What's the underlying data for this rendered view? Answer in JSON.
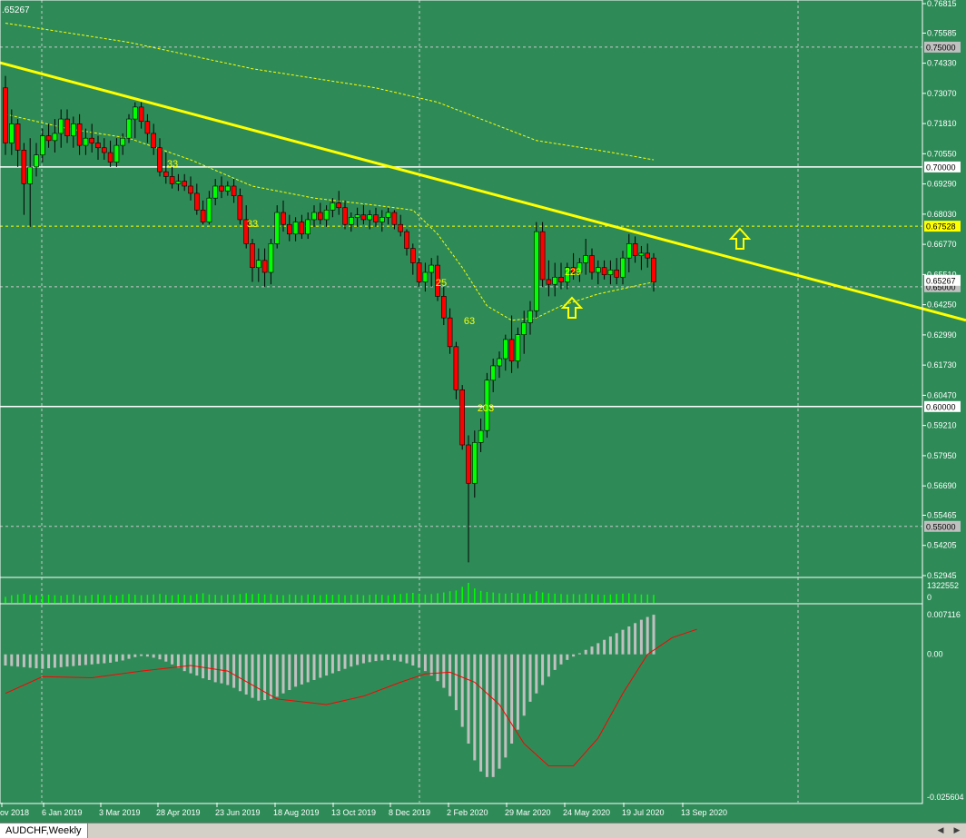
{
  "window": {
    "tab_label": "AUDCHF,Weekly",
    "scroll_left_glyph": "◀",
    "scroll_right_glyph": "▶"
  },
  "colors": {
    "background": "#2e8b57",
    "grid": "#c8c8c8",
    "axis_text": "#ffffff",
    "bull_candle": "#00ff00",
    "bear_candle": "#ff0000",
    "wick": "#000000",
    "trendline": "#ffff00",
    "ma": "#ffff00",
    "volume": "#00ff00",
    "macd_hist": "#c0c0c0",
    "macd_signal": "#ff0000",
    "arrow": "#ffff00",
    "label_box": "#c0c0c0",
    "highlight_box": "#ffff00"
  },
  "price_axis": {
    "ticks": [
      "0.76815",
      "0.75585",
      "0.74330",
      "0.73070",
      "0.71810",
      "0.70550",
      "0.69290",
      "0.68030",
      "0.66770",
      "0.65510",
      "0.64250",
      "0.62990",
      "0.61730",
      "0.60470",
      "0.59210",
      "0.57950",
      "0.56690",
      "0.55465",
      "0.54205",
      "0.52945"
    ],
    "level_labels": [
      {
        "value": "0.75000",
        "style": "gray"
      },
      {
        "value": "0.70000",
        "style": "white"
      },
      {
        "value": "0.67528",
        "style": "yellow"
      },
      {
        "value": "0.65000",
        "style": "gray"
      },
      {
        "value": "0.60000",
        "style": "white"
      },
      {
        "value": "0.55000",
        "style": "gray"
      }
    ],
    "current_price": "0.65267"
  },
  "volume_axis": {
    "top_label": "1322552",
    "bottom_label": "0"
  },
  "macd_axis": {
    "top_label": "0.007116",
    "zero_label": "0.00",
    "bottom_label": "-0.025604"
  },
  "time_axis": {
    "labels": [
      "ov 2018",
      "6 Jan 2019",
      "3 Mar 2019",
      "28 Apr 2019",
      "23 Jun 2019",
      "18 Aug 2019",
      "13 Oct 2019",
      "8 Dec 2019",
      "2 Feb 2020",
      "29 Mar 2020",
      "24 May 2020",
      "19 Jul 2020",
      "13 Sep 2020"
    ]
  },
  "top_left_price": ".65267",
  "chart_annotations": [
    "33",
    "33",
    "25",
    "63",
    "203",
    "229"
  ],
  "chart_data": {
    "type": "candlestick",
    "symbol": "AUDCHF",
    "timeframe": "Weekly",
    "ylim": [
      0.52945,
      0.76815
    ],
    "horizontal_levels": [
      0.75,
      0.7,
      0.67528,
      0.65,
      0.6,
      0.55
    ],
    "candles": [
      [
        0.733,
        0.738,
        0.705,
        0.71
      ],
      [
        0.71,
        0.724,
        0.705,
        0.718
      ],
      [
        0.718,
        0.72,
        0.7,
        0.707
      ],
      [
        0.707,
        0.71,
        0.68,
        0.693
      ],
      [
        0.693,
        0.712,
        0.675,
        0.7
      ],
      [
        0.7,
        0.71,
        0.696,
        0.705
      ],
      [
        0.705,
        0.716,
        0.702,
        0.713
      ],
      [
        0.713,
        0.718,
        0.708,
        0.711
      ],
      [
        0.711,
        0.72,
        0.706,
        0.714
      ],
      [
        0.714,
        0.724,
        0.708,
        0.72
      ],
      [
        0.72,
        0.724,
        0.71,
        0.713
      ],
      [
        0.713,
        0.721,
        0.708,
        0.718
      ],
      [
        0.718,
        0.722,
        0.705,
        0.709
      ],
      [
        0.709,
        0.716,
        0.705,
        0.712
      ],
      [
        0.712,
        0.718,
        0.706,
        0.71
      ],
      [
        0.71,
        0.713,
        0.703,
        0.708
      ],
      [
        0.708,
        0.712,
        0.703,
        0.706
      ],
      [
        0.706,
        0.711,
        0.7,
        0.702
      ],
      [
        0.702,
        0.712,
        0.7,
        0.709
      ],
      [
        0.709,
        0.714,
        0.705,
        0.712
      ],
      [
        0.712,
        0.722,
        0.71,
        0.72
      ],
      [
        0.72,
        0.727,
        0.712,
        0.725
      ],
      [
        0.725,
        0.727,
        0.716,
        0.719
      ],
      [
        0.719,
        0.722,
        0.71,
        0.714
      ],
      [
        0.714,
        0.718,
        0.705,
        0.708
      ],
      [
        0.708,
        0.712,
        0.696,
        0.698
      ],
      [
        0.698,
        0.706,
        0.693,
        0.696
      ],
      [
        0.696,
        0.7,
        0.691,
        0.693
      ],
      [
        0.693,
        0.697,
        0.69,
        0.694
      ],
      [
        0.694,
        0.697,
        0.69,
        0.692
      ],
      [
        0.692,
        0.696,
        0.686,
        0.689
      ],
      [
        0.689,
        0.693,
        0.68,
        0.682
      ],
      [
        0.682,
        0.686,
        0.676,
        0.677
      ],
      [
        0.677,
        0.69,
        0.676,
        0.687
      ],
      [
        0.687,
        0.695,
        0.684,
        0.692
      ],
      [
        0.692,
        0.696,
        0.687,
        0.69
      ],
      [
        0.69,
        0.694,
        0.688,
        0.692
      ],
      [
        0.692,
        0.695,
        0.685,
        0.688
      ],
      [
        0.688,
        0.691,
        0.676,
        0.678
      ],
      [
        0.678,
        0.684,
        0.666,
        0.668
      ],
      [
        0.668,
        0.67,
        0.652,
        0.658
      ],
      [
        0.658,
        0.666,
        0.652,
        0.661
      ],
      [
        0.661,
        0.666,
        0.65,
        0.656
      ],
      [
        0.656,
        0.67,
        0.651,
        0.668
      ],
      [
        0.668,
        0.684,
        0.666,
        0.681
      ],
      [
        0.681,
        0.686,
        0.673,
        0.676
      ],
      [
        0.676,
        0.68,
        0.669,
        0.672
      ],
      [
        0.672,
        0.679,
        0.669,
        0.677
      ],
      [
        0.677,
        0.68,
        0.67,
        0.672
      ],
      [
        0.672,
        0.681,
        0.67,
        0.678
      ],
      [
        0.678,
        0.684,
        0.675,
        0.681
      ],
      [
        0.681,
        0.685,
        0.676,
        0.678
      ],
      [
        0.678,
        0.684,
        0.675,
        0.682
      ],
      [
        0.682,
        0.687,
        0.679,
        0.685
      ],
      [
        0.685,
        0.69,
        0.68,
        0.683
      ],
      [
        0.683,
        0.686,
        0.674,
        0.676
      ],
      [
        0.676,
        0.681,
        0.673,
        0.679
      ],
      [
        0.679,
        0.683,
        0.675,
        0.68
      ],
      [
        0.68,
        0.684,
        0.676,
        0.678
      ],
      [
        0.678,
        0.682,
        0.674,
        0.68
      ],
      [
        0.68,
        0.683,
        0.675,
        0.677
      ],
      [
        0.677,
        0.682,
        0.673,
        0.679
      ],
      [
        0.679,
        0.683,
        0.676,
        0.681
      ],
      [
        0.681,
        0.682,
        0.674,
        0.676
      ],
      [
        0.676,
        0.68,
        0.671,
        0.673
      ],
      [
        0.673,
        0.674,
        0.663,
        0.666
      ],
      [
        0.666,
        0.668,
        0.655,
        0.66
      ],
      [
        0.66,
        0.662,
        0.65,
        0.652
      ],
      [
        0.652,
        0.66,
        0.648,
        0.656
      ],
      [
        0.656,
        0.662,
        0.65,
        0.659
      ],
      [
        0.659,
        0.663,
        0.644,
        0.646
      ],
      [
        0.646,
        0.65,
        0.634,
        0.637
      ],
      [
        0.637,
        0.641,
        0.622,
        0.625
      ],
      [
        0.625,
        0.627,
        0.603,
        0.607
      ],
      [
        0.607,
        0.609,
        0.582,
        0.584
      ],
      [
        0.584,
        0.588,
        0.535,
        0.568
      ],
      [
        0.568,
        0.59,
        0.562,
        0.585
      ],
      [
        0.585,
        0.595,
        0.581,
        0.59
      ],
      [
        0.59,
        0.614,
        0.587,
        0.611
      ],
      [
        0.611,
        0.62,
        0.606,
        0.617
      ],
      [
        0.617,
        0.623,
        0.612,
        0.62
      ],
      [
        0.62,
        0.63,
        0.615,
        0.628
      ],
      [
        0.628,
        0.638,
        0.614,
        0.619
      ],
      [
        0.619,
        0.633,
        0.616,
        0.63
      ],
      [
        0.63,
        0.64,
        0.622,
        0.635
      ],
      [
        0.635,
        0.644,
        0.63,
        0.64
      ],
      [
        0.64,
        0.677,
        0.637,
        0.673
      ],
      [
        0.673,
        0.677,
        0.65,
        0.653
      ],
      [
        0.653,
        0.661,
        0.646,
        0.651
      ],
      [
        0.651,
        0.66,
        0.646,
        0.654
      ],
      [
        0.654,
        0.66,
        0.649,
        0.652
      ],
      [
        0.652,
        0.66,
        0.649,
        0.658
      ],
      [
        0.658,
        0.664,
        0.653,
        0.656
      ],
      [
        0.656,
        0.662,
        0.652,
        0.66
      ],
      [
        0.66,
        0.67,
        0.655,
        0.663
      ],
      [
        0.663,
        0.666,
        0.653,
        0.656
      ],
      [
        0.656,
        0.661,
        0.651,
        0.658
      ],
      [
        0.658,
        0.661,
        0.653,
        0.655
      ],
      [
        0.655,
        0.661,
        0.651,
        0.657
      ],
      [
        0.657,
        0.662,
        0.651,
        0.654
      ],
      [
        0.654,
        0.665,
        0.651,
        0.662
      ],
      [
        0.662,
        0.672,
        0.656,
        0.668
      ],
      [
        0.668,
        0.671,
        0.66,
        0.663
      ],
      [
        0.663,
        0.667,
        0.657,
        0.664
      ],
      [
        0.664,
        0.668,
        0.658,
        0.662
      ],
      [
        0.662,
        0.664,
        0.648,
        0.652
      ]
    ],
    "ma_fast": [
      [
        0,
        0.722
      ],
      [
        10,
        0.716
      ],
      [
        20,
        0.712
      ],
      [
        30,
        0.703
      ],
      [
        40,
        0.692
      ],
      [
        50,
        0.687
      ],
      [
        60,
        0.684
      ],
      [
        66,
        0.682
      ],
      [
        70,
        0.672
      ],
      [
        74,
        0.658
      ],
      [
        78,
        0.642
      ],
      [
        82,
        0.636
      ],
      [
        86,
        0.637
      ],
      [
        90,
        0.642
      ],
      [
        96,
        0.647
      ],
      [
        105,
        0.652
      ]
    ],
    "ma_slow": [
      [
        0,
        0.76
      ],
      [
        20,
        0.752
      ],
      [
        40,
        0.741
      ],
      [
        60,
        0.733
      ],
      [
        70,
        0.727
      ],
      [
        78,
        0.719
      ],
      [
        86,
        0.711
      ],
      [
        96,
        0.707
      ],
      [
        105,
        0.703
      ]
    ],
    "trendline": {
      "x1": 0,
      "y1": 0.7435,
      "x2": 1064,
      "y2": 0.636
    },
    "volume": [
      0.3,
      0.38,
      0.42,
      0.45,
      0.4,
      0.38,
      0.35,
      0.4,
      0.38,
      0.36,
      0.4,
      0.42,
      0.38,
      0.36,
      0.4,
      0.42,
      0.38,
      0.4,
      0.36,
      0.42,
      0.44,
      0.4,
      0.38,
      0.4,
      0.42,
      0.44,
      0.4,
      0.38,
      0.42,
      0.4,
      0.38,
      0.44,
      0.48,
      0.42,
      0.4,
      0.38,
      0.42,
      0.4,
      0.44,
      0.48,
      0.44,
      0.46,
      0.42,
      0.44,
      0.4,
      0.38,
      0.42,
      0.4,
      0.38,
      0.42,
      0.4,
      0.38,
      0.42,
      0.4,
      0.42,
      0.38,
      0.4,
      0.42,
      0.38,
      0.4,
      0.42,
      0.4,
      0.38,
      0.42,
      0.44,
      0.48,
      0.5,
      0.46,
      0.42,
      0.44,
      0.48,
      0.52,
      0.58,
      0.62,
      0.8,
      1.0,
      0.72,
      0.6,
      0.55,
      0.52,
      0.48,
      0.46,
      0.5,
      0.48,
      0.46,
      0.44,
      0.58,
      0.52,
      0.48,
      0.46,
      0.44,
      0.42,
      0.44,
      0.42,
      0.46,
      0.44,
      0.42,
      0.4,
      0.42,
      0.44,
      0.46,
      0.48,
      0.44,
      0.42,
      0.42,
      0.4
    ],
    "macd_hist": [
      -0.002,
      -0.0021,
      -0.0022,
      -0.0023,
      -0.0024,
      -0.0025,
      -0.0026,
      -0.0025,
      -0.0024,
      -0.0023,
      -0.0022,
      -0.0021,
      -0.002,
      -0.0019,
      -0.0018,
      -0.0017,
      -0.0016,
      -0.0015,
      -0.0013,
      -0.0011,
      -0.0008,
      -0.0005,
      -0.0003,
      -0.0004,
      -0.0006,
      -0.0009,
      -0.0013,
      -0.0018,
      -0.0024,
      -0.003,
      -0.0034,
      -0.0038,
      -0.0043,
      -0.0046,
      -0.005,
      -0.0052,
      -0.0055,
      -0.006,
      -0.0066,
      -0.0072,
      -0.0078,
      -0.0083,
      -0.0082,
      -0.008,
      -0.0076,
      -0.007,
      -0.0064,
      -0.0058,
      -0.0054,
      -0.005,
      -0.0046,
      -0.0042,
      -0.0038,
      -0.0034,
      -0.003,
      -0.0026,
      -0.0022,
      -0.0019,
      -0.0016,
      -0.0014,
      -0.0012,
      -0.0011,
      -0.001,
      -0.0011,
      -0.0013,
      -0.0016,
      -0.002,
      -0.0024,
      -0.003,
      -0.0038,
      -0.0048,
      -0.006,
      -0.0075,
      -0.01,
      -0.013,
      -0.016,
      -0.019,
      -0.021,
      -0.022,
      -0.022,
      -0.0205,
      -0.0185,
      -0.016,
      -0.0135,
      -0.011,
      -0.0085,
      -0.007,
      -0.0055,
      -0.004,
      -0.0028,
      -0.0018,
      -0.001,
      -0.0004,
      0.0002,
      0.0008,
      0.0014,
      0.002,
      0.0026,
      0.0032,
      0.0038,
      0.0044,
      0.005,
      0.0056,
      0.0062,
      0.0067,
      0.0071
    ],
    "macd_signal": [
      [
        0,
        -0.007
      ],
      [
        6,
        -0.004
      ],
      [
        14,
        -0.0042
      ],
      [
        22,
        -0.003
      ],
      [
        30,
        -0.002
      ],
      [
        36,
        -0.003
      ],
      [
        44,
        -0.008
      ],
      [
        52,
        -0.009
      ],
      [
        58,
        -0.0075
      ],
      [
        64,
        -0.005
      ],
      [
        68,
        -0.0035
      ],
      [
        72,
        -0.0032
      ],
      [
        76,
        -0.005
      ],
      [
        80,
        -0.009
      ],
      [
        84,
        -0.016
      ],
      [
        88,
        -0.02
      ],
      [
        92,
        -0.02
      ],
      [
        96,
        -0.015
      ],
      [
        100,
        -0.007
      ],
      [
        104,
        0.0
      ],
      [
        108,
        0.003
      ],
      [
        112,
        0.0045
      ]
    ]
  }
}
